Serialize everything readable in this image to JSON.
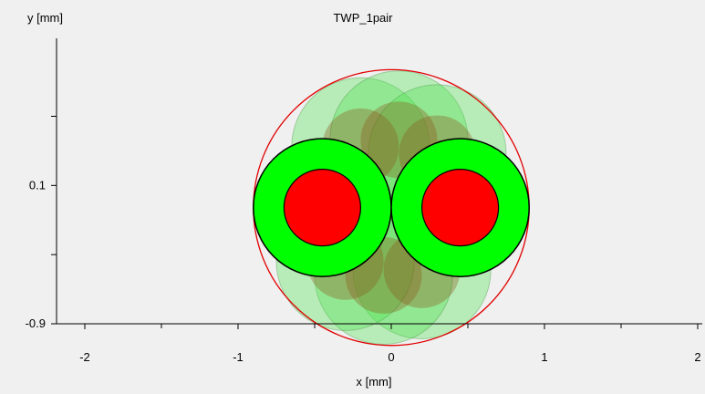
{
  "chart_data": {
    "type": "scatter",
    "title": "TWP_1pair",
    "xlabel": "x [mm]",
    "ylabel": "y [mm]",
    "xlim": [
      -2.2,
      2.0
    ],
    "ylim": [
      -0.9,
      0.9
    ],
    "x_ticks": [
      "-2",
      "-1",
      "0",
      "1",
      "2"
    ],
    "y_ticks": [
      "-0.9",
      "0.1"
    ],
    "colors": {
      "background": "#f0f0f0",
      "conductor": "#ff0000",
      "insulation": "#00ff00",
      "shadow_insulation": "#4ee34e",
      "shadow_conductor": "#8a5a1a",
      "outer_circle": "#e00000",
      "axis": "#000000"
    },
    "outer_boundary": {
      "cx": 0.0,
      "cy": -0.06,
      "r": 0.9
    },
    "wires": [
      {
        "name": "",
        "cx": -0.45,
        "cy": -0.06,
        "r_insulation": 0.45,
        "r_conductor": 0.25
      },
      {
        "name": "",
        "cx": 0.45,
        "cy": -0.06,
        "r_insulation": 0.45,
        "r_conductor": 0.25
      }
    ],
    "shadow_wires": [
      {
        "cx": -0.2,
        "cy": 0.38,
        "r_insulation": 0.45,
        "r_conductor": 0.25
      },
      {
        "cx": 0.05,
        "cy": 0.43,
        "r_insulation": 0.45,
        "r_conductor": 0.25
      },
      {
        "cx": 0.3,
        "cy": 0.33,
        "r_insulation": 0.45,
        "r_conductor": 0.25
      },
      {
        "cx": 0.2,
        "cy": -0.51,
        "r_insulation": 0.45,
        "r_conductor": 0.25
      },
      {
        "cx": -0.05,
        "cy": -0.55,
        "r_insulation": 0.45,
        "r_conductor": 0.25
      },
      {
        "cx": -0.3,
        "cy": -0.45,
        "r_insulation": 0.45,
        "r_conductor": 0.25
      }
    ]
  }
}
